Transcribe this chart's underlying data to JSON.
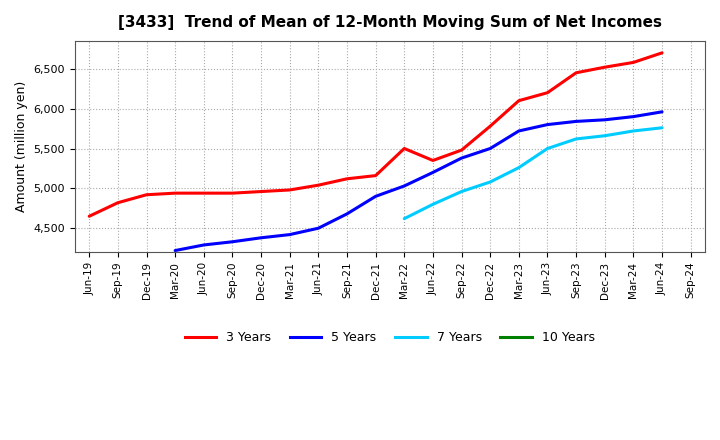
{
  "title": "[3433]  Trend of Mean of 12-Month Moving Sum of Net Incomes",
  "ylabel": "Amount (million yen)",
  "ylim": [
    4200,
    6850
  ],
  "yticks": [
    4500,
    5000,
    5500,
    6000,
    6500
  ],
  "background_color": "#ffffff",
  "grid_color": "#aaaaaa",
  "x_labels": [
    "Jun-19",
    "Sep-19",
    "Dec-19",
    "Mar-20",
    "Jun-20",
    "Sep-20",
    "Dec-20",
    "Mar-21",
    "Jun-21",
    "Sep-21",
    "Dec-21",
    "Mar-22",
    "Jun-22",
    "Sep-22",
    "Dec-22",
    "Mar-23",
    "Jun-23",
    "Sep-23",
    "Dec-23",
    "Mar-24",
    "Jun-24",
    "Sep-24"
  ],
  "series": {
    "3 Years": {
      "color": "#ff0000",
      "data_x": [
        0,
        1,
        2,
        3,
        4,
        5,
        6,
        7,
        8,
        9,
        10,
        11,
        12,
        13,
        14,
        15,
        16,
        17,
        18,
        19,
        20
      ],
      "data_y": [
        4650,
        4820,
        4920,
        4940,
        4940,
        4940,
        4960,
        4980,
        5040,
        5120,
        5160,
        5500,
        5350,
        5480,
        5780,
        6100,
        6200,
        6450,
        6520,
        6580,
        6700
      ]
    },
    "5 Years": {
      "color": "#0000ff",
      "data_x": [
        3,
        4,
        5,
        6,
        7,
        8,
        9,
        10,
        11,
        12,
        13,
        14,
        15,
        16,
        17,
        18,
        19,
        20
      ],
      "data_y": [
        4220,
        4290,
        4330,
        4380,
        4420,
        4500,
        4680,
        4900,
        5030,
        5200,
        5380,
        5500,
        5720,
        5800,
        5840,
        5860,
        5900,
        5960
      ]
    },
    "7 Years": {
      "color": "#00ccff",
      "data_x": [
        11,
        12,
        13,
        14,
        15,
        16,
        17,
        18,
        19,
        20
      ],
      "data_y": [
        4620,
        4800,
        4960,
        5080,
        5260,
        5500,
        5620,
        5660,
        5720,
        5760
      ]
    },
    "10 Years": {
      "color": "#008000",
      "data_x": [],
      "data_y": []
    }
  },
  "legend_labels": [
    "3 Years",
    "5 Years",
    "7 Years",
    "10 Years"
  ],
  "legend_colors": [
    "#ff0000",
    "#0000ff",
    "#00ccff",
    "#008000"
  ]
}
